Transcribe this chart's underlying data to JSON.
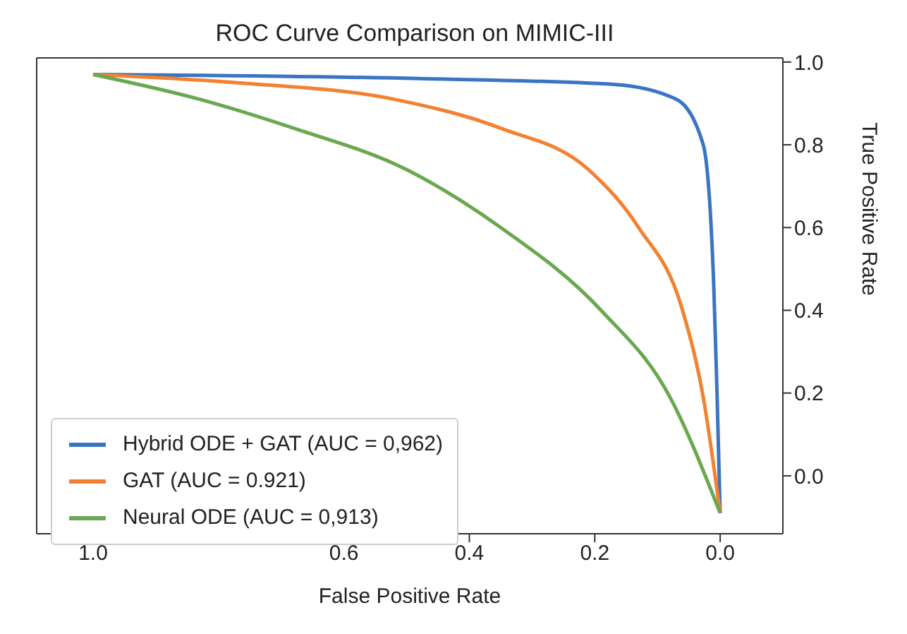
{
  "chart_data": {
    "type": "line",
    "title": "ROC Curve Comparison on MIMIC-III",
    "xlabel": "False Positive Rate",
    "ylabel": "True Positive Rate",
    "series": [
      {
        "name": "Hybrid ODE + GAT (AUC = 0,962)",
        "color": "#3a75c4",
        "x": [
          0,
          0.005,
          0.01,
          0.027,
          0.07,
          0.17,
          0.48,
          1.0
        ],
        "values": [
          -0.09,
          0.2,
          0.45,
          0.8,
          0.91,
          0.946,
          0.96,
          0.97
        ]
      },
      {
        "name": "GAT (AUC = 0.921)",
        "color": "#f28130",
        "x": [
          0,
          0.027,
          0.06,
          0.13,
          0.21,
          0.35,
          0.52,
          0.77,
          1.0
        ],
        "values": [
          -0.09,
          0.19,
          0.4,
          0.6,
          0.74,
          0.84,
          0.91,
          0.95,
          0.97
        ]
      },
      {
        "name": "Neural ODE (AUC = 0,913)",
        "color": "#6aa84f",
        "x": [
          0,
          0.08,
          0.19,
          0.35,
          0.5,
          0.68,
          0.83,
          1.0
        ],
        "values": [
          -0.09,
          0.19,
          0.4,
          0.6,
          0.74,
          0.84,
          0.91,
          0.97
        ]
      }
    ],
    "xlim": [
      1.09,
      -0.1
    ],
    "xticks": [
      {
        "value": 1,
        "label": "1.0"
      },
      0.6,
      0.4,
      0.2,
      {
        "value": 0,
        "label": "0.0"
      }
    ],
    "ylim": [
      -0.14,
      1.01
    ],
    "yticks": [
      {
        "value": 0,
        "label": "0.0"
      },
      0.2,
      0.4,
      0.6,
      0.8,
      {
        "value": 1,
        "label": "1.0"
      }
    ],
    "legend": "bottom left",
    "marker": "none",
    "line_style": "solid"
  }
}
